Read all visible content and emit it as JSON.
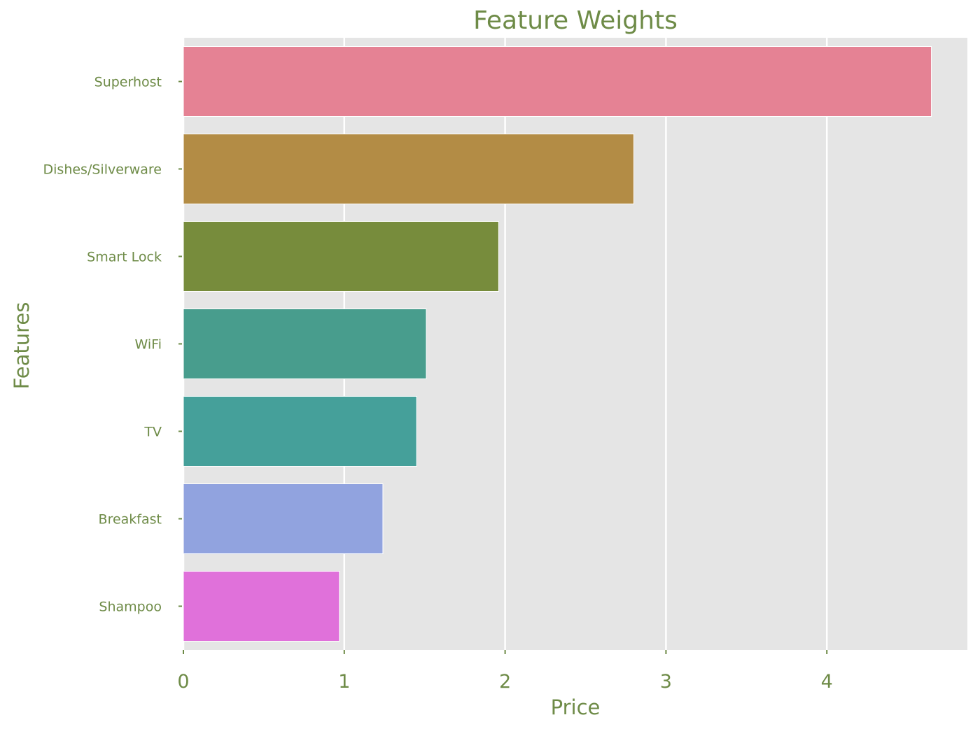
{
  "chart_data": {
    "type": "bar",
    "orientation": "horizontal",
    "title": "Feature Weights",
    "xlabel": "Price",
    "ylabel": "Features",
    "categories": [
      "Superhost",
      "Dishes/Silverware",
      "Smart Lock",
      "WiFi",
      "TV",
      "Breakfast",
      "Shampoo"
    ],
    "values": [
      4.65,
      2.8,
      1.96,
      1.51,
      1.45,
      1.24,
      0.97
    ],
    "bar_colors": [
      "#e58294",
      "#b38c45",
      "#778c3c",
      "#489d8d",
      "#45a09a",
      "#91a3df",
      "#e071da"
    ],
    "xlim": [
      0,
      4.9
    ],
    "xticks": [
      "0",
      "1",
      "2",
      "3",
      "4"
    ],
    "grid": true,
    "colors": {
      "text": "#6e8b47",
      "plot_background": "#e5e5e5",
      "grid": "#ffffff"
    }
  }
}
